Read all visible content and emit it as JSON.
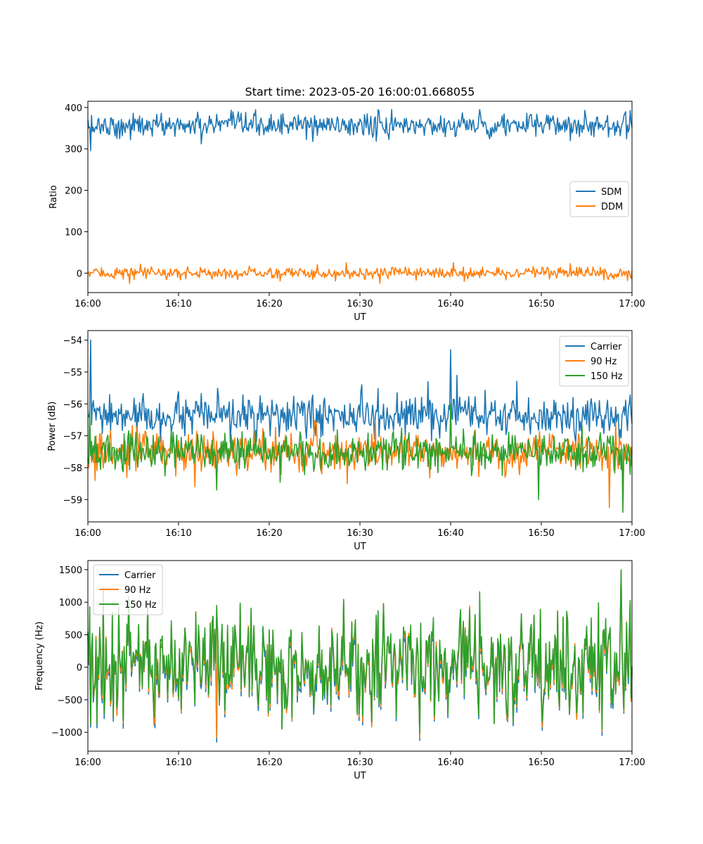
{
  "figure": {
    "title": "Start time: 2023-05-20 16:00:01.668055",
    "colors": {
      "blue": "#1f77b4",
      "orange": "#ff7f0e",
      "green": "#2ca02c"
    }
  },
  "chart_data": [
    {
      "type": "line",
      "xlabel": "UT",
      "ylabel": "Ratio",
      "xlim": [
        "16:00",
        "17:00"
      ],
      "ylim": [
        -47,
        415
      ],
      "yticks": [
        0,
        100,
        200,
        300,
        400
      ],
      "xticks": [
        "16:00",
        "16:10",
        "16:20",
        "16:30",
        "16:40",
        "16:50",
        "17:00"
      ],
      "legend": "center-right",
      "grid": false,
      "series": [
        {
          "name": "SDM",
          "color": "#1f77b4",
          "mean": 357,
          "spread": 14,
          "points_note": "noisy around 357",
          "events": [
            [
              0.3,
              296
            ],
            [
              3.5,
              325
            ],
            [
              12.5,
              312
            ],
            [
              24.8,
              318
            ],
            [
              33.2,
              323
            ],
            [
              43.2,
              395
            ],
            [
              54.8,
              393
            ],
            [
              59.8,
              393
            ]
          ]
        },
        {
          "name": "DDM",
          "color": "#ff7f0e",
          "mean": 0,
          "spread": 7,
          "events": [
            [
              4.6,
              -25
            ],
            [
              28.5,
              25
            ],
            [
              32.2,
              -25
            ],
            [
              40.3,
              25
            ],
            [
              41.5,
              -20
            ],
            [
              53.2,
              23
            ],
            [
              59.5,
              -18
            ]
          ]
        }
      ]
    },
    {
      "type": "line",
      "xlabel": "UT",
      "ylabel": "Power (dB)",
      "xlim": [
        "16:00",
        "17:00"
      ],
      "ylim": [
        -59.7,
        -53.7
      ],
      "yticks": [
        -59,
        -58,
        -57,
        -56,
        -55,
        -54
      ],
      "xticks": [
        "16:00",
        "16:10",
        "16:20",
        "16:30",
        "16:40",
        "16:50",
        "17:00"
      ],
      "legend": "top-right",
      "grid": false,
      "series": [
        {
          "name": "Carrier",
          "color": "#1f77b4",
          "mean": -56.4,
          "spread": 0.3,
          "events": [
            [
              0.3,
              -54.0
            ],
            [
              8.0,
              -57.2
            ],
            [
              30.2,
              -55.4
            ],
            [
              37.5,
              -55.3
            ],
            [
              40.0,
              -54.3
            ],
            [
              40.7,
              -55.1
            ],
            [
              53.5,
              -55.8
            ],
            [
              58.6,
              -57.2
            ]
          ]
        },
        {
          "name": "90 Hz",
          "color": "#ff7f0e",
          "mean": -57.5,
          "spread": 0.3,
          "events": [
            [
              0.8,
              -58.4
            ],
            [
              11.8,
              -58.6
            ],
            [
              28.6,
              -58.5
            ],
            [
              46.0,
              -58.3
            ],
            [
              57.5,
              -59.25
            ],
            [
              59.0,
              -59.3
            ]
          ]
        },
        {
          "name": "150 Hz",
          "color": "#2ca02c",
          "mean": -57.5,
          "spread": 0.3,
          "events": [
            [
              0.2,
              -56.2
            ],
            [
              14.2,
              -58.7
            ],
            [
              40.0,
              -56.0
            ],
            [
              49.7,
              -59.0
            ],
            [
              59.0,
              -59.4
            ]
          ]
        }
      ]
    },
    {
      "type": "line",
      "xlabel": "UT",
      "ylabel": "Frequency (Hz)",
      "xlim": [
        "16:00",
        "17:00"
      ],
      "ylim": [
        -1290,
        1640
      ],
      "yticks": [
        -1000,
        -500,
        0,
        500,
        1000,
        1500
      ],
      "xticks": [
        "16:00",
        "16:10",
        "16:20",
        "16:30",
        "16:40",
        "16:50",
        "17:00"
      ],
      "legend": "top-left",
      "grid": false,
      "series": [
        {
          "name": "Carrier",
          "color": "#1f77b4",
          "mean": -40,
          "spread": 400,
          "events": [
            [
              0.3,
              -920
            ],
            [
              7.4,
              -930
            ],
            [
              14.2,
              -1150
            ],
            [
              56.7,
              -1050
            ],
            [
              58.8,
              1430
            ]
          ]
        },
        {
          "name": "90 Hz",
          "color": "#ff7f0e",
          "mean": 0,
          "spread": 400,
          "events": [
            [
              0.3,
              -870
            ],
            [
              7.4,
              -880
            ],
            [
              14.2,
              -1080
            ],
            [
              56.7,
              -990
            ],
            [
              58.8,
              1470
            ]
          ]
        },
        {
          "name": "150 Hz",
          "color": "#2ca02c",
          "mean": 30,
          "spread": 400,
          "events": [
            [
              0.2,
              930
            ],
            [
              14.2,
              950
            ],
            [
              43.2,
              1160
            ],
            [
              56.7,
              -950
            ],
            [
              58.8,
              1500
            ]
          ]
        }
      ]
    }
  ]
}
